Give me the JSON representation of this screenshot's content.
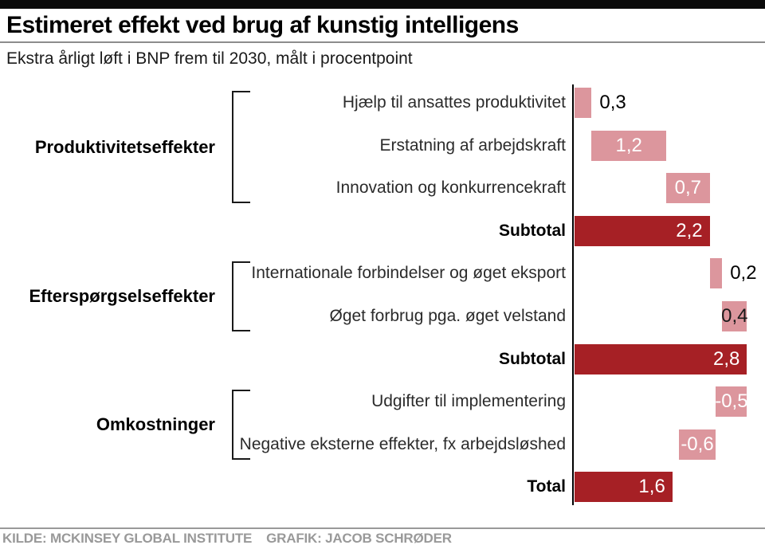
{
  "header": {
    "title": "Estimeret effekt ved brug af kunstig intelligens",
    "subtitle": "Ekstra årligt løft i BNP frem til 2030, målt i procentpoint"
  },
  "footer": {
    "source": "KILDE: MCKINSEY GLOBAL INSTITUTE",
    "credit": "GRAFIK: JACOB SCHRØDER"
  },
  "colors": {
    "bar_pink": "#DC969D",
    "bar_dark_red": "#A62025",
    "axis_black": "#000000",
    "divider_gray": "#8C8C8C",
    "footer_gray": "#999999"
  },
  "chart_data": {
    "type": "bar",
    "subtype": "horizontal-waterfall",
    "title": "Estimeret effekt ved brug af kunstig intelligens",
    "xlabel": "procentpoint",
    "xlim": [
      0,
      2.8
    ],
    "grid": false,
    "legend": false,
    "rows": [
      {
        "label": "Hjælp til ansattes produktivitet",
        "value": 0.3,
        "display": "0,3",
        "start": 0,
        "end": 0.3,
        "kind": "item",
        "color": "pink",
        "value_label": "outside"
      },
      {
        "label": "Erstatning af arbejdskraft",
        "value": 1.2,
        "display": "1,2",
        "start": 0.3,
        "end": 1.5,
        "kind": "item",
        "color": "pink",
        "value_label": "inside-center-white"
      },
      {
        "label": "Innovation og konkurrencekraft",
        "value": 0.7,
        "display": "0,7",
        "start": 1.5,
        "end": 2.2,
        "kind": "item",
        "color": "pink",
        "value_label": "inside-center-white"
      },
      {
        "label": "Subtotal",
        "value": 2.2,
        "display": "2,2",
        "start": 0,
        "end": 2.2,
        "kind": "subtotal",
        "color": "dark",
        "value_label": "inside-right-white"
      },
      {
        "label": "Internationale forbindelser og øget eksport",
        "value": 0.2,
        "display": "0,2",
        "start": 2.2,
        "end": 2.4,
        "kind": "item",
        "color": "pink",
        "value_label": "outside"
      },
      {
        "label": "Øget forbrug pga. øget velstand",
        "value": 0.4,
        "display": "0,4",
        "start": 2.4,
        "end": 2.8,
        "kind": "item",
        "color": "pink",
        "value_label": "inside-center-black"
      },
      {
        "label": "Subtotal",
        "value": 2.8,
        "display": "2,8",
        "start": 0,
        "end": 2.8,
        "kind": "subtotal",
        "color": "dark",
        "value_label": "inside-right-white"
      },
      {
        "label": "Udgifter til implementering",
        "value": -0.5,
        "display": "-0,5",
        "start": 2.3,
        "end": 2.8,
        "kind": "item",
        "color": "pink",
        "value_label": "inside-center-white"
      },
      {
        "label": "Negative eksterne effekter, fx arbejdsløshed",
        "value": -0.6,
        "display": "-0,6",
        "start": 1.7,
        "end": 2.3,
        "kind": "item",
        "color": "pink",
        "value_label": "inside-center-white"
      },
      {
        "label": "Total",
        "value": 1.6,
        "display": "1,6",
        "start": 0,
        "end": 1.6,
        "kind": "total",
        "color": "dark",
        "value_label": "inside-right-white"
      }
    ],
    "groups": [
      {
        "label": "Produktivitetseffekter",
        "first_row": 0,
        "last_row": 2
      },
      {
        "label": "Efterspørgselseffekter",
        "first_row": 4,
        "last_row": 5
      },
      {
        "label": "Omkostninger",
        "first_row": 7,
        "last_row": 8
      }
    ]
  }
}
